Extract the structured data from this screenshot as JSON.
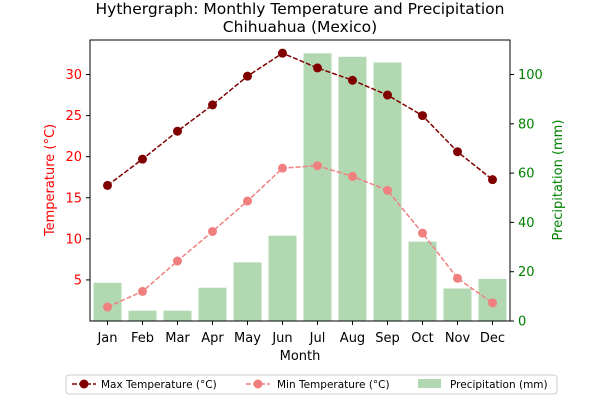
{
  "chart_data": {
    "type": "bar+line",
    "title": "Hythergraph: Monthly Temperature and Precipitation",
    "subtitle": "Chihuahua (Mexico)",
    "xlabel": "Month",
    "ylabel_left": "Temperature (°C)",
    "ylabel_right": "Precipitation (mm)",
    "categories": [
      "Jan",
      "Feb",
      "Mar",
      "Apr",
      "May",
      "Jun",
      "Jul",
      "Aug",
      "Sep",
      "Oct",
      "Nov",
      "Dec"
    ],
    "ylim_left": [
      0,
      34.2
    ],
    "ylim_right": [
      0,
      114
    ],
    "yticks_left": [
      5,
      10,
      15,
      20,
      25,
      30
    ],
    "yticks_right": [
      0,
      20,
      40,
      60,
      80,
      100
    ],
    "grid": false,
    "legend_position": "bottom",
    "series": [
      {
        "name": "Max Temperature (°C)",
        "kind": "line",
        "axis": "left",
        "color": "#800000",
        "values": [
          16.5,
          19.7,
          23.1,
          26.3,
          29.8,
          32.6,
          30.8,
          29.3,
          27.5,
          25.0,
          20.6,
          17.2
        ]
      },
      {
        "name": "Min Temperature (°C)",
        "kind": "line",
        "axis": "left",
        "color": "#f08080",
        "values": [
          1.7,
          3.6,
          7.3,
          10.9,
          14.6,
          18.6,
          18.9,
          17.6,
          15.9,
          10.7,
          5.2,
          2.2
        ]
      },
      {
        "name": "Precipitation (mm)",
        "kind": "bar",
        "axis": "right",
        "color": "#b2d8b2",
        "values": [
          15.5,
          4.2,
          4.2,
          13.5,
          23.8,
          34.6,
          108.6,
          107.2,
          104.9,
          32.2,
          13.2,
          17.1
        ]
      }
    ]
  }
}
